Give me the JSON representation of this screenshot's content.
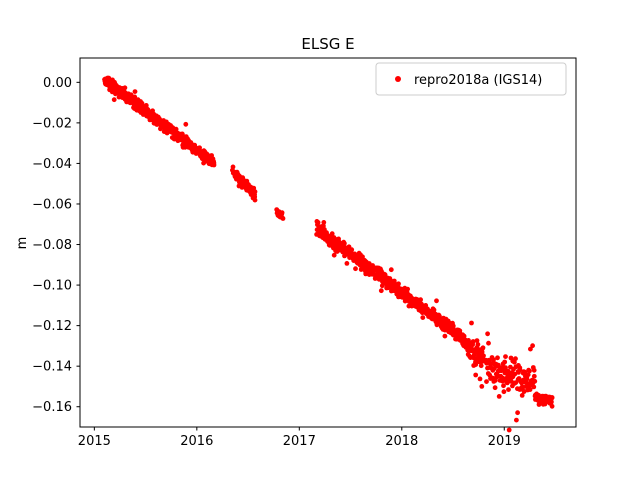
{
  "chart_data": {
    "type": "scatter",
    "title": "ELSG E",
    "xlabel": "",
    "ylabel": "m",
    "grid": false,
    "legend_position": "upper right",
    "legend": [
      {
        "label": "repro2018a (IGS14)",
        "color": "#ff0000",
        "marker": "dot"
      }
    ],
    "marker_color": "#ff0000",
    "x_range": [
      2014.86,
      2019.7
    ],
    "y_range": [
      -0.17,
      0.012
    ],
    "x_ticks": [
      {
        "value": 2015,
        "label": "2015"
      },
      {
        "value": 2016,
        "label": "2016"
      },
      {
        "value": 2017,
        "label": "2017"
      },
      {
        "value": 2018,
        "label": "2018"
      },
      {
        "value": 2019,
        "label": "2019"
      }
    ],
    "y_ticks": [
      {
        "value": 0.0,
        "label": "0.00"
      },
      {
        "value": -0.02,
        "label": "−0.02"
      },
      {
        "value": -0.04,
        "label": "−0.04"
      },
      {
        "value": -0.06,
        "label": "−0.06"
      },
      {
        "value": -0.08,
        "label": "−0.08"
      },
      {
        "value": -0.1,
        "label": "−0.10"
      },
      {
        "value": -0.12,
        "label": "−0.12"
      },
      {
        "value": -0.14,
        "label": "−0.14"
      },
      {
        "value": -0.16,
        "label": "−0.16"
      }
    ],
    "series_segments": [
      {
        "x0": 2015.1,
        "x1": 2016.17,
        "y0": 0.001,
        "y1": -0.04,
        "n": 470,
        "jx": 0.004,
        "jy": 0.0022,
        "outlier": 0.01
      },
      {
        "x0": 2016.35,
        "x1": 2016.57,
        "y0": -0.0445,
        "y1": -0.0555,
        "n": 95,
        "jx": 0.003,
        "jy": 0.002,
        "outlier": 0.01
      },
      {
        "x0": 2016.78,
        "x1": 2016.84,
        "y0": -0.0645,
        "y1": -0.066,
        "n": 18,
        "jx": 0.002,
        "jy": 0.0013,
        "outlier": 0.0
      },
      {
        "x0": 2017.17,
        "x1": 2018.62,
        "y0": -0.0725,
        "y1": -0.127,
        "n": 540,
        "jx": 0.004,
        "jy": 0.0026,
        "outlier": 0.02
      },
      {
        "x0": 2018.62,
        "x1": 2018.8,
        "y0": -0.1285,
        "y1": -0.136,
        "n": 70,
        "jx": 0.003,
        "jy": 0.004,
        "outlier": 0.08
      },
      {
        "x0": 2018.82,
        "x1": 2019.3,
        "y0": -0.14,
        "y1": -0.149,
        "n": 135,
        "jx": 0.004,
        "jy": 0.0062,
        "outlier": 0.06
      },
      {
        "x0": 2019.3,
        "x1": 2019.47,
        "y0": -0.1555,
        "y1": -0.157,
        "n": 75,
        "jx": 0.003,
        "jy": 0.002,
        "outlier": 0.02
      }
    ]
  }
}
